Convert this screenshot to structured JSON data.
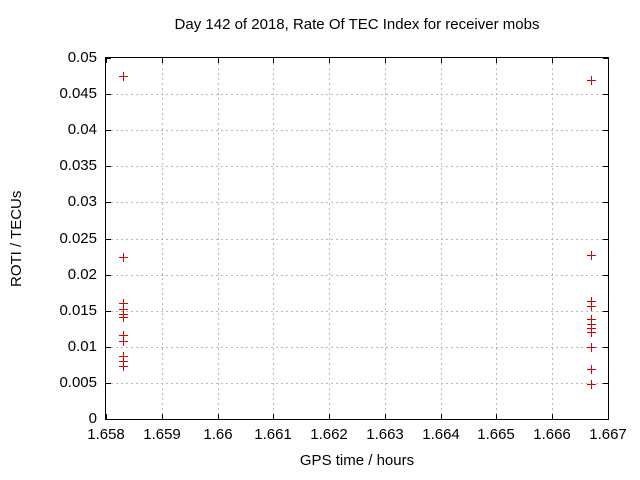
{
  "colors": {
    "background": "#ffffff",
    "text": "#000000",
    "axis": "#000000",
    "grid": "#b8b8b8",
    "marker": "#dd0000"
  },
  "chart_data": {
    "type": "scatter",
    "title": "Day 142 of 2018, Rate Of TEC Index for receiver mobs",
    "xlabel": "GPS time / hours",
    "ylabel": "ROTI / TECUs",
    "xlim": [
      1.658,
      1.667
    ],
    "ylim": [
      0,
      0.05
    ],
    "grid": true,
    "legend": "none",
    "marker": "plus",
    "x_ticks": {
      "values": [
        1.658,
        1.659,
        1.66,
        1.661,
        1.662,
        1.663,
        1.664,
        1.665,
        1.666,
        1.667
      ],
      "labels": [
        "1.658",
        "1.659",
        "1.66",
        "1.661",
        "1.662",
        "1.663",
        "1.664",
        "1.665",
        "1.666",
        "1.667"
      ]
    },
    "y_ticks": {
      "values": [
        0,
        0.005,
        0.01,
        0.015,
        0.02,
        0.025,
        0.03,
        0.035,
        0.04,
        0.045,
        0.05
      ],
      "labels": [
        "0",
        "0.005",
        "0.01",
        "0.015",
        "0.02",
        "0.025",
        "0.03",
        "0.035",
        "0.04",
        "0.045",
        "0.05"
      ]
    },
    "series": [
      {
        "points": [
          [
            1.6583,
            0.0475
          ],
          [
            1.6583,
            0.0224
          ],
          [
            1.6583,
            0.016
          ],
          [
            1.6583,
            0.0152
          ],
          [
            1.6583,
            0.0146
          ],
          [
            1.6583,
            0.0141
          ],
          [
            1.6583,
            0.0117
          ],
          [
            1.6583,
            0.0108
          ],
          [
            1.6583,
            0.0087
          ],
          [
            1.6583,
            0.008
          ],
          [
            1.6583,
            0.0073
          ],
          [
            1.6667,
            0.0469
          ],
          [
            1.6667,
            0.0227
          ],
          [
            1.6667,
            0.0163
          ],
          [
            1.6667,
            0.0157
          ],
          [
            1.6667,
            0.0138
          ],
          [
            1.6667,
            0.0132
          ],
          [
            1.6667,
            0.0126
          ],
          [
            1.6667,
            0.0121
          ],
          [
            1.6667,
            0.01
          ],
          [
            1.6667,
            0.0069
          ],
          [
            1.6667,
            0.0049
          ]
        ]
      }
    ]
  }
}
